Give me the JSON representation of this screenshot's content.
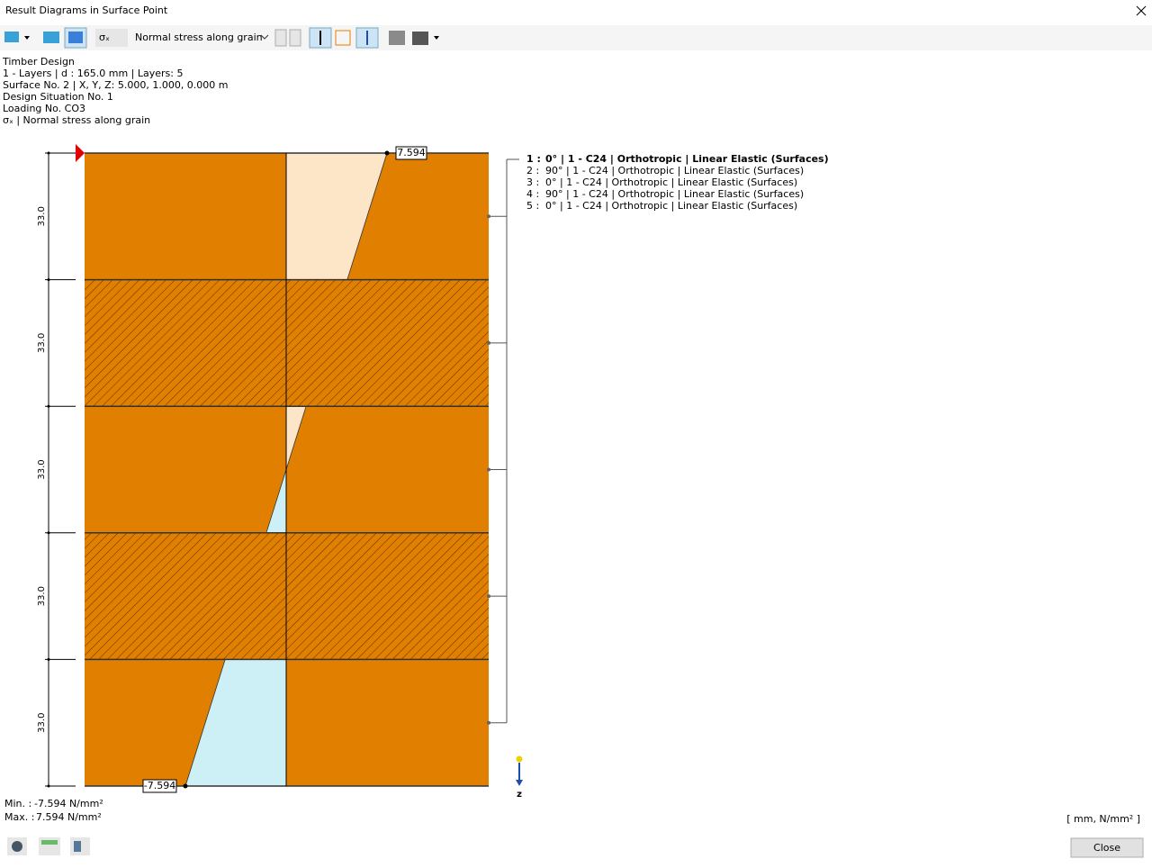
{
  "window": {
    "title": "Result Diagrams in Surface Point"
  },
  "toolbar": {
    "symbol": "σₓ",
    "result_type": "Normal stress along grain"
  },
  "info": [
    "Timber Design",
    "1 - Layers | d : 165.0 mm | Layers: 5",
    "Surface No. 2 | X, Y, Z: 5.000, 1.000, 0.000 m",
    "Design Situation No. 1",
    "Loading No. CO3",
    "σₓ | Normal stress along grain"
  ],
  "diagram": {
    "layers": [
      {
        "thickness": "33.0",
        "no": "1 :",
        "description": "0° | 1 - C24 | Orthotropic | Linear Elastic (Surfaces)",
        "hatched": false,
        "top": 7.594,
        "bottom": 4.6
      },
      {
        "thickness": "33.0",
        "no": "2 :",
        "description": "90° | 1 - C24 | Orthotropic | Linear Elastic (Surfaces)",
        "hatched": true,
        "top": 0,
        "bottom": 0
      },
      {
        "thickness": "33.0",
        "no": "3 :",
        "description": "0° | 1 - C24 | Orthotropic | Linear Elastic (Surfaces)",
        "hatched": false,
        "top": 1.5,
        "bottom": -1.5
      },
      {
        "thickness": "33.0",
        "no": "4 :",
        "description": "90° | 1 - C24 | Orthotropic | Linear Elastic (Surfaces)",
        "hatched": true,
        "top": 0,
        "bottom": 0
      },
      {
        "thickness": "33.0",
        "no": "5 :",
        "description": "0° | 1 - C24 | Orthotropic | Linear Elastic (Surfaces)",
        "hatched": false,
        "top": -4.6,
        "bottom": -7.594
      }
    ],
    "max_label": "7.594",
    "min_label": "-7.594",
    "axis_label": "z"
  },
  "summary": {
    "min_label": "Min. :",
    "min_value": "-7.594 N/mm²",
    "max_label": "Max. :",
    "max_value": "7.594 N/mm²",
    "units": "[ mm, N/mm² ]"
  },
  "buttons": {
    "close": "Close"
  }
}
